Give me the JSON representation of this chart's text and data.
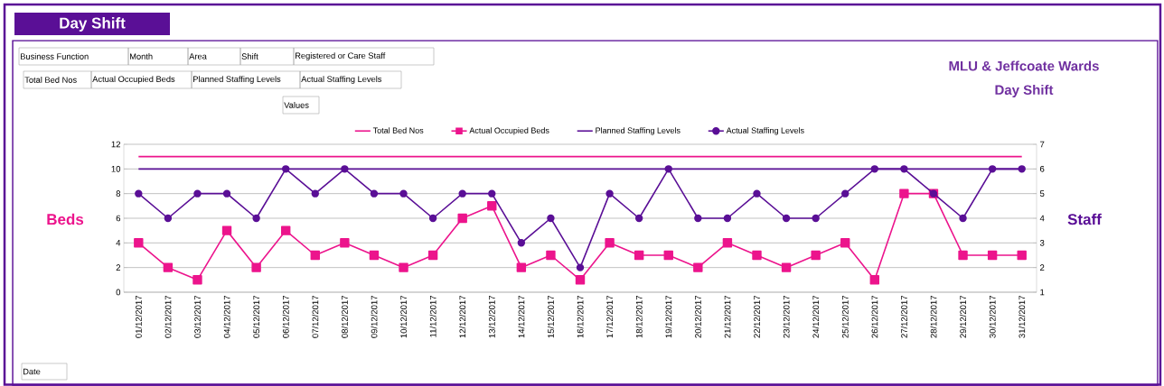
{
  "chart_data": {
    "type": "line",
    "title": "MLU & Jeffcoate Wards",
    "subtitle": "Day Shift",
    "ylabel": "Beds",
    "y2label": "Staff",
    "annotations": [
      "Day Shift",
      "Business Function",
      "Month",
      "Area",
      "Shift",
      "Registered or Care Staff",
      "Total Bed Nos",
      "Actual Occupied Beds",
      "Planned Staffing Levels",
      "Actual Staffing Levels",
      "Values",
      "Date"
    ],
    "categories": [
      "01/12/2017",
      "02/12/2017",
      "03/12/2017",
      "04/12/2017",
      "05/12/2017",
      "06/12/2017",
      "07/12/2017",
      "08/12/2017",
      "09/12/2017",
      "10/12/2017",
      "11/12/2017",
      "12/12/2017",
      "13/12/2017",
      "14/12/2017",
      "15/12/2017",
      "16/12/2017",
      "17/12/2017",
      "18/12/2017",
      "19/12/2017",
      "20/12/2017",
      "21/12/2017",
      "22/12/2017",
      "23/12/2017",
      "24/12/2017",
      "25/12/2017",
      "26/12/2017",
      "27/12/2017",
      "28/12/2017",
      "29/12/2017",
      "30/12/2017",
      "31/12/2017"
    ],
    "series": [
      {
        "name": "Total Bed Nos",
        "color": "#ec148c",
        "marker": "none",
        "values": [
          11,
          11,
          11,
          11,
          11,
          11,
          11,
          11,
          11,
          11,
          11,
          11,
          11,
          11,
          11,
          11,
          11,
          11,
          11,
          11,
          11,
          11,
          11,
          11,
          11,
          11,
          11,
          11,
          11,
          11,
          11
        ]
      },
      {
        "name": "Actual Occupied Beds",
        "color": "#ec148c",
        "marker": "square",
        "values": [
          4,
          2,
          1,
          5,
          2,
          5,
          3,
          4,
          3,
          2,
          3,
          6,
          7,
          2,
          3,
          1,
          4,
          3,
          3,
          2,
          4,
          3,
          2,
          3,
          4,
          1,
          8,
          8,
          3,
          3,
          3
        ]
      },
      {
        "name": "Planned Staffing Levels",
        "color": "#5a0f96",
        "marker": "none",
        "axis": "y2",
        "values": [
          6,
          6,
          6,
          6,
          6,
          6,
          6,
          6,
          6,
          6,
          6,
          6,
          6,
          6,
          6,
          6,
          6,
          6,
          6,
          6,
          6,
          6,
          6,
          6,
          6,
          6,
          6,
          6,
          6,
          6,
          6
        ]
      },
      {
        "name": "Actual Staffing Levels",
        "color": "#5a0f96",
        "marker": "circle",
        "axis": "y2",
        "values": [
          5,
          4,
          5,
          5,
          4,
          6,
          5,
          6,
          5,
          5,
          4,
          5,
          5,
          3,
          4,
          2,
          5,
          4,
          6,
          4,
          4,
          5,
          4,
          4,
          5,
          6,
          6,
          5,
          4,
          6,
          6
        ]
      }
    ],
    "ylim": [
      0,
      12
    ],
    "yticks": [
      0,
      2,
      4,
      6,
      8,
      10,
      12
    ],
    "y2lim": [
      1,
      7
    ],
    "y2ticks": [
      1,
      2,
      3,
      4,
      5,
      6,
      7
    ],
    "grid": "y",
    "legend": "top"
  }
}
